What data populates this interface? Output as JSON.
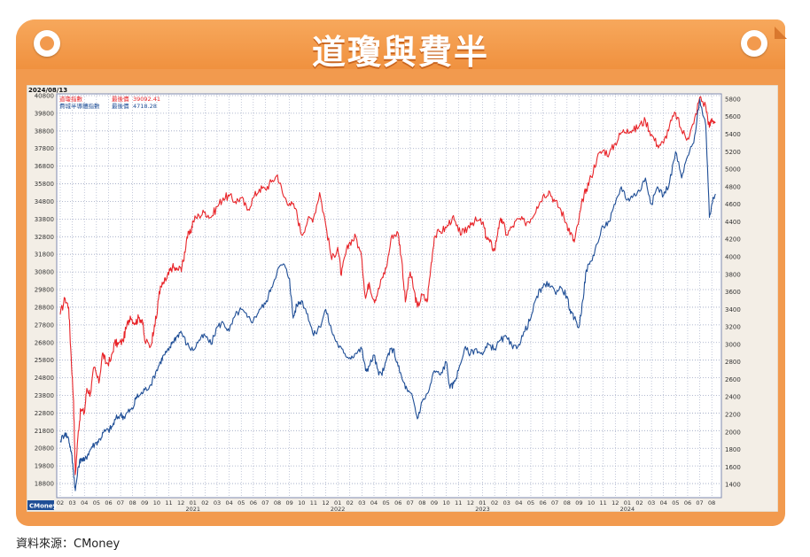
{
  "header": {
    "title": "道瓊與費半"
  },
  "footer": {
    "source": "資料來源：CMoney"
  },
  "chart_data": {
    "type": "line",
    "date_label": "2024/08/13",
    "watermark": "CMoney",
    "left_axis": {
      "ticks": [
        18800,
        19800,
        20800,
        21800,
        22800,
        23800,
        24800,
        25800,
        26800,
        27800,
        28800,
        29800,
        30800,
        31800,
        32800,
        33800,
        34800,
        35800,
        36800,
        37800,
        38800,
        39800,
        40800
      ],
      "ylim": [
        18000,
        40900
      ]
    },
    "right_axis": {
      "ticks": [
        1400,
        1600,
        1800,
        2000,
        2200,
        2400,
        2600,
        2800,
        3000,
        3200,
        3400,
        3600,
        3800,
        4000,
        4200,
        4400,
        4600,
        4800,
        5000,
        5200,
        5400,
        5600,
        5800
      ],
      "ylim": [
        1250,
        5860
      ]
    },
    "x_months": [
      "02",
      "03",
      "04",
      "05",
      "06",
      "07",
      "08",
      "09",
      "10",
      "11",
      "12",
      "01",
      "02",
      "03",
      "04",
      "05",
      "06",
      "07",
      "08",
      "09",
      "10",
      "11",
      "12",
      "01",
      "02",
      "03",
      "04",
      "05",
      "06",
      "07",
      "08",
      "09",
      "10",
      "11",
      "12",
      "01",
      "02",
      "03",
      "04",
      "05",
      "06",
      "07",
      "08",
      "09",
      "10",
      "11",
      "12",
      "01",
      "02",
      "03",
      "04",
      "05",
      "06",
      "07",
      "08"
    ],
    "x_years": [
      {
        "label": "2021",
        "index": 11
      },
      {
        "label": "2022",
        "index": 23
      },
      {
        "label": "2023",
        "index": 35
      },
      {
        "label": "2024",
        "index": 47
      }
    ],
    "x_start": "2020-02",
    "legend": [
      {
        "name": "道瓊指數",
        "value_label": "最後價",
        "value": "39092.41",
        "color": "#e8252a"
      },
      {
        "name": "費城半導體指數",
        "value_label": "最後價",
        "value": "4718.28",
        "color": "#1f4e96"
      }
    ],
    "series": [
      {
        "name": "道瓊指數",
        "axis": "left",
        "color": "#e8252a",
        "points": [
          [
            0.0,
            28400
          ],
          [
            0.4,
            29300
          ],
          [
            0.7,
            28800
          ],
          [
            0.9,
            26000
          ],
          [
            1.1,
            23500
          ],
          [
            1.25,
            19300
          ],
          [
            1.5,
            21800
          ],
          [
            1.7,
            23000
          ],
          [
            2.0,
            22800
          ],
          [
            2.2,
            24200
          ],
          [
            2.5,
            23900
          ],
          [
            2.8,
            25400
          ],
          [
            3.2,
            24500
          ],
          [
            3.5,
            26200
          ],
          [
            3.8,
            25600
          ],
          [
            4.2,
            25800
          ],
          [
            4.5,
            26800
          ],
          [
            4.8,
            26700
          ],
          [
            5.2,
            26900
          ],
          [
            5.5,
            27700
          ],
          [
            5.8,
            28300
          ],
          [
            6.2,
            27900
          ],
          [
            6.5,
            28200
          ],
          [
            6.8,
            28100
          ],
          [
            7.0,
            26900
          ],
          [
            7.5,
            26600
          ],
          [
            7.8,
            27800
          ],
          [
            8.0,
            28300
          ],
          [
            8.2,
            29700
          ],
          [
            8.5,
            30100
          ],
          [
            8.8,
            30400
          ],
          [
            9.0,
            30700
          ],
          [
            9.3,
            31100
          ],
          [
            9.6,
            30900
          ],
          [
            10.0,
            31000
          ],
          [
            10.2,
            31400
          ],
          [
            10.5,
            32800
          ],
          [
            10.8,
            33000
          ],
          [
            11.0,
            33700
          ],
          [
            11.5,
            34000
          ],
          [
            12.0,
            34200
          ],
          [
            12.5,
            33900
          ],
          [
            13.0,
            34500
          ],
          [
            13.5,
            35000
          ],
          [
            14.0,
            35100
          ],
          [
            14.5,
            34800
          ],
          [
            15.0,
            35000
          ],
          [
            15.5,
            34300
          ],
          [
            16.0,
            35000
          ],
          [
            16.5,
            35500
          ],
          [
            17.0,
            35500
          ],
          [
            17.5,
            35900
          ],
          [
            18.0,
            36300
          ],
          [
            18.5,
            35100
          ],
          [
            19.0,
            34700
          ],
          [
            19.5,
            34400
          ],
          [
            20.0,
            32900
          ],
          [
            20.5,
            33700
          ],
          [
            21.0,
            33900
          ],
          [
            21.5,
            35300
          ],
          [
            22.0,
            33500
          ],
          [
            22.5,
            31500
          ],
          [
            23.0,
            32200
          ],
          [
            23.3,
            30600
          ],
          [
            23.6,
            31700
          ],
          [
            24.0,
            32500
          ],
          [
            24.5,
            32800
          ],
          [
            25.0,
            31500
          ],
          [
            25.3,
            29300
          ],
          [
            25.6,
            30200
          ],
          [
            26.0,
            29200
          ],
          [
            26.3,
            29600
          ],
          [
            26.7,
            30500
          ],
          [
            27.0,
            31000
          ],
          [
            27.5,
            32900
          ],
          [
            28.0,
            33000
          ],
          [
            28.3,
            31500
          ],
          [
            28.6,
            29100
          ],
          [
            29.0,
            30800
          ],
          [
            29.3,
            29800
          ],
          [
            29.6,
            28800
          ],
          [
            30.0,
            29500
          ],
          [
            30.4,
            29100
          ],
          [
            30.7,
            31000
          ],
          [
            31.0,
            32800
          ],
          [
            31.5,
            33100
          ],
          [
            32.0,
            33300
          ],
          [
            32.5,
            33900
          ],
          [
            33.0,
            33100
          ],
          [
            33.5,
            33000
          ],
          [
            34.0,
            33600
          ],
          [
            34.5,
            33700
          ],
          [
            35.0,
            33600
          ],
          [
            35.3,
            32800
          ],
          [
            35.6,
            32500
          ],
          [
            36.0,
            32000
          ],
          [
            36.3,
            33300
          ],
          [
            36.6,
            33800
          ],
          [
            37.0,
            32900
          ],
          [
            37.5,
            33400
          ],
          [
            38.0,
            33800
          ],
          [
            38.5,
            33600
          ],
          [
            39.0,
            33800
          ],
          [
            39.5,
            34500
          ],
          [
            40.0,
            35100
          ],
          [
            40.5,
            35400
          ],
          [
            41.0,
            34800
          ],
          [
            41.5,
            34300
          ],
          [
            42.0,
            33500
          ],
          [
            42.3,
            33000
          ],
          [
            42.6,
            32500
          ],
          [
            43.0,
            33800
          ],
          [
            43.3,
            34900
          ],
          [
            43.6,
            35500
          ],
          [
            44.0,
            36200
          ],
          [
            44.5,
            37300
          ],
          [
            45.0,
            37700
          ],
          [
            45.5,
            37500
          ],
          [
            46.0,
            38100
          ],
          [
            46.5,
            38700
          ],
          [
            47.0,
            38900
          ],
          [
            47.5,
            38800
          ],
          [
            48.0,
            39100
          ],
          [
            48.5,
            39400
          ],
          [
            49.0,
            38600
          ],
          [
            49.5,
            38000
          ],
          [
            50.0,
            38100
          ],
          [
            50.5,
            39100
          ],
          [
            51.0,
            39800
          ],
          [
            51.5,
            38800
          ],
          [
            52.0,
            38400
          ],
          [
            52.5,
            39200
          ],
          [
            53.0,
            40700
          ],
          [
            53.5,
            40200
          ],
          [
            53.8,
            39000
          ],
          [
            54.0,
            39500
          ],
          [
            54.3,
            39300
          ]
        ]
      },
      {
        "name": "費城半導體指數",
        "axis": "right",
        "color": "#1f4e96",
        "points": [
          [
            0.0,
            1900
          ],
          [
            0.4,
            1990
          ],
          [
            0.7,
            1920
          ],
          [
            0.9,
            1780
          ],
          [
            1.1,
            1550
          ],
          [
            1.25,
            1330
          ],
          [
            1.5,
            1600
          ],
          [
            1.7,
            1700
          ],
          [
            2.0,
            1670
          ],
          [
            2.3,
            1750
          ],
          [
            2.6,
            1830
          ],
          [
            3.0,
            1880
          ],
          [
            3.3,
            1920
          ],
          [
            3.6,
            2000
          ],
          [
            4.0,
            2020
          ],
          [
            4.3,
            2060
          ],
          [
            4.6,
            2150
          ],
          [
            5.0,
            2200
          ],
          [
            5.3,
            2170
          ],
          [
            5.6,
            2230
          ],
          [
            6.0,
            2260
          ],
          [
            6.3,
            2400
          ],
          [
            6.6,
            2420
          ],
          [
            7.0,
            2480
          ],
          [
            7.5,
            2540
          ],
          [
            8.0,
            2710
          ],
          [
            8.3,
            2800
          ],
          [
            8.6,
            2880
          ],
          [
            9.0,
            2930
          ],
          [
            9.3,
            3030
          ],
          [
            9.6,
            3080
          ],
          [
            10.0,
            3150
          ],
          [
            10.5,
            3000
          ],
          [
            11.0,
            2930
          ],
          [
            11.5,
            3050
          ],
          [
            12.0,
            3100
          ],
          [
            12.5,
            3000
          ],
          [
            13.0,
            3200
          ],
          [
            13.5,
            3250
          ],
          [
            14.0,
            3150
          ],
          [
            14.5,
            3330
          ],
          [
            15.0,
            3400
          ],
          [
            15.5,
            3310
          ],
          [
            16.0,
            3270
          ],
          [
            16.5,
            3400
          ],
          [
            17.0,
            3460
          ],
          [
            17.5,
            3650
          ],
          [
            18.0,
            3850
          ],
          [
            18.5,
            3920
          ],
          [
            19.0,
            3750
          ],
          [
            19.3,
            3300
          ],
          [
            19.6,
            3450
          ],
          [
            20.0,
            3500
          ],
          [
            20.5,
            3350
          ],
          [
            21.0,
            3100
          ],
          [
            21.5,
            3200
          ],
          [
            22.0,
            3400
          ],
          [
            22.5,
            3150
          ],
          [
            23.0,
            3000
          ],
          [
            23.5,
            2900
          ],
          [
            24.0,
            2850
          ],
          [
            24.5,
            2900
          ],
          [
            25.0,
            2950
          ],
          [
            25.3,
            2700
          ],
          [
            25.6,
            2750
          ],
          [
            26.0,
            2880
          ],
          [
            26.4,
            2650
          ],
          [
            26.8,
            2700
          ],
          [
            27.2,
            2900
          ],
          [
            27.6,
            2950
          ],
          [
            28.0,
            2750
          ],
          [
            28.4,
            2580
          ],
          [
            28.8,
            2460
          ],
          [
            29.2,
            2400
          ],
          [
            29.6,
            2150
          ],
          [
            30.0,
            2350
          ],
          [
            30.5,
            2450
          ],
          [
            31.0,
            2700
          ],
          [
            31.5,
            2650
          ],
          [
            32.0,
            2800
          ],
          [
            32.3,
            2500
          ],
          [
            32.6,
            2550
          ],
          [
            33.0,
            2700
          ],
          [
            33.5,
            2950
          ],
          [
            34.0,
            2900
          ],
          [
            34.5,
            2950
          ],
          [
            35.0,
            2880
          ],
          [
            35.5,
            3000
          ],
          [
            36.0,
            2950
          ],
          [
            36.5,
            3050
          ],
          [
            37.0,
            3080
          ],
          [
            37.5,
            2950
          ],
          [
            38.0,
            3000
          ],
          [
            38.5,
            3150
          ],
          [
            39.0,
            3300
          ],
          [
            39.5,
            3550
          ],
          [
            40.0,
            3650
          ],
          [
            40.5,
            3700
          ],
          [
            41.0,
            3600
          ],
          [
            41.5,
            3650
          ],
          [
            42.0,
            3550
          ],
          [
            42.3,
            3350
          ],
          [
            42.6,
            3300
          ],
          [
            43.0,
            3200
          ],
          [
            43.3,
            3500
          ],
          [
            43.6,
            3850
          ],
          [
            44.0,
            3950
          ],
          [
            44.5,
            4150
          ],
          [
            45.0,
            4350
          ],
          [
            45.5,
            4400
          ],
          [
            46.0,
            4600
          ],
          [
            46.5,
            4800
          ],
          [
            47.0,
            4650
          ],
          [
            47.5,
            4700
          ],
          [
            48.0,
            4750
          ],
          [
            48.5,
            4900
          ],
          [
            49.0,
            4600
          ],
          [
            49.5,
            4800
          ],
          [
            50.0,
            4700
          ],
          [
            50.5,
            4850
          ],
          [
            51.0,
            5200
          ],
          [
            51.5,
            4900
          ],
          [
            52.0,
            5150
          ],
          [
            52.5,
            5300
          ],
          [
            53.0,
            5800
          ],
          [
            53.5,
            5500
          ],
          [
            53.8,
            4450
          ],
          [
            54.0,
            4600
          ],
          [
            54.3,
            4718
          ]
        ]
      }
    ]
  }
}
